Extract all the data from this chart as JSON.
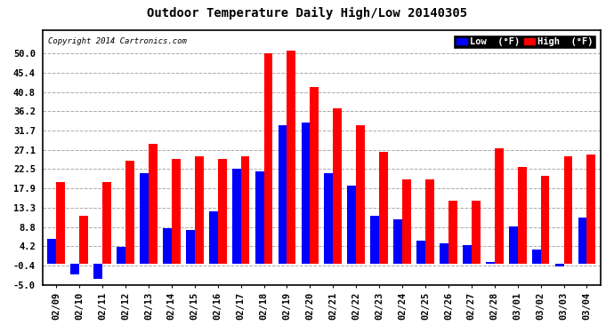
{
  "title": "Outdoor Temperature Daily High/Low 20140305",
  "copyright": "Copyright 2014 Cartronics.com",
  "legend_low": "Low  (°F)",
  "legend_high": "High  (°F)",
  "dates": [
    "02/09",
    "02/10",
    "02/11",
    "02/12",
    "02/13",
    "02/14",
    "02/15",
    "02/16",
    "02/17",
    "02/18",
    "02/19",
    "02/20",
    "02/21",
    "02/22",
    "02/23",
    "02/24",
    "02/25",
    "02/26",
    "02/27",
    "02/28",
    "03/01",
    "03/02",
    "03/03",
    "03/04"
  ],
  "highs": [
    19.5,
    11.5,
    19.5,
    24.5,
    28.5,
    25.0,
    25.5,
    25.0,
    25.5,
    50.0,
    50.5,
    42.0,
    37.0,
    33.0,
    26.5,
    20.0,
    20.0,
    15.0,
    15.0,
    27.5,
    23.0,
    21.0,
    25.5,
    26.0
  ],
  "lows": [
    6.0,
    -2.5,
    -3.5,
    4.0,
    21.5,
    8.5,
    8.0,
    12.5,
    22.5,
    22.0,
    33.0,
    33.5,
    21.5,
    18.5,
    11.5,
    10.5,
    5.5,
    5.0,
    4.5,
    0.5,
    9.0,
    3.5,
    -0.5,
    11.0
  ],
  "ylim": [
    -5.0,
    55.5
  ],
  "yticks": [
    -5.0,
    -0.4,
    4.2,
    8.8,
    13.3,
    17.9,
    22.5,
    27.1,
    31.7,
    36.2,
    40.8,
    45.4,
    50.0
  ],
  "fig_bg_color": "#ffffff",
  "plot_bg_color": "#ffffff",
  "bar_color_high": "#ff0000",
  "bar_color_low": "#0000ff",
  "grid_color": "#aaaaaa",
  "axis_text_color": "#000000",
  "title_color": "#000000",
  "copyright_color": "#000000",
  "legend_bg_color": "#000000",
  "legend_text_color": "#ffffff",
  "bar_width": 0.38
}
